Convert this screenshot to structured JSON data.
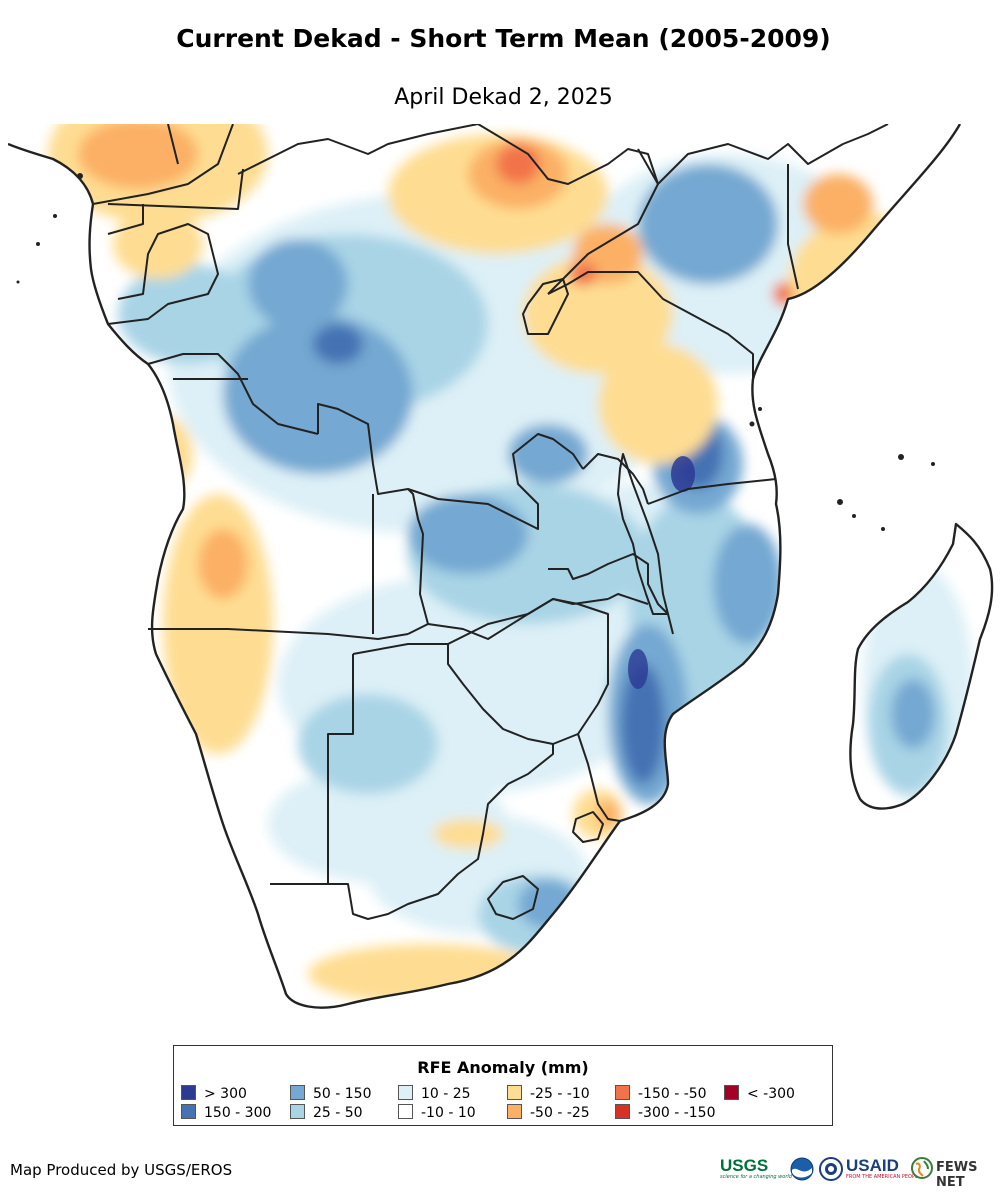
{
  "title": "Current Dekad - Short Term Mean (2005-2009)",
  "subtitle": "April Dekad 2, 2025",
  "legend": {
    "title": "RFE Anomaly (mm)",
    "items": [
      {
        "label": "> 300",
        "color": "#2b3a93"
      },
      {
        "label": "150 - 300",
        "color": "#4572b3"
      },
      {
        "label": "50 - 150",
        "color": "#75a8d2"
      },
      {
        "label": "25 - 50",
        "color": "#a9d4e6"
      },
      {
        "label": "10 - 25",
        "color": "#ddf0f7"
      },
      {
        "label": "-10 - 10",
        "color": "#ffffff"
      },
      {
        "label": "-25 - -10",
        "color": "#fedd92"
      },
      {
        "label": "-50 - -25",
        "color": "#fbb065"
      },
      {
        "label": "-150 - -50",
        "color": "#f2734a"
      },
      {
        "label": "-300 - -150",
        "color": "#d73027"
      },
      {
        "label": "< -300",
        "color": "#a50026"
      }
    ]
  },
  "credit": "Map Produced by USGS/EROS",
  "logos": {
    "usgs": "USGS",
    "usgs_tagline": "science for a changing world",
    "usaid": "USAID",
    "usaid_tagline": "FROM THE AMERICAN PEOPLE",
    "fewsnet": "FEWS NET"
  }
}
